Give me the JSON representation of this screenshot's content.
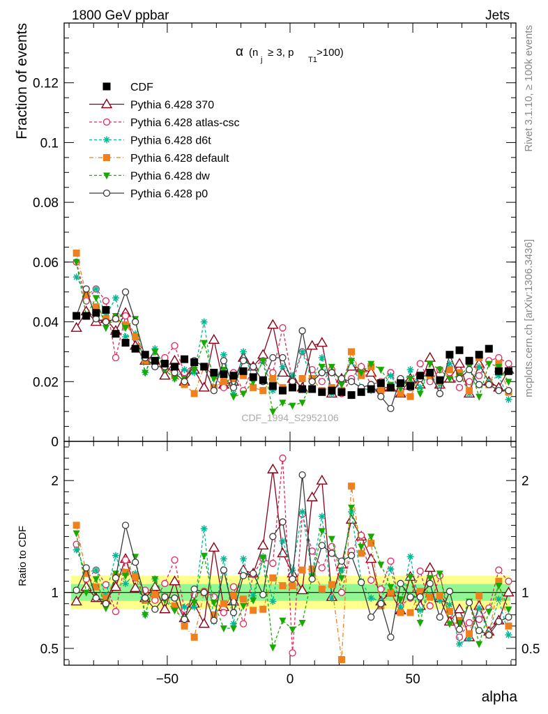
{
  "header": {
    "left": "1800 GeV ppbar",
    "right": "Jets",
    "side_top": "Rivet 3.1.10, ≥ 100k events",
    "side_bottom": "mcplots.cern.ch [arXiv:1306.3436]"
  },
  "chart_data": [
    {
      "type": "line",
      "title": "α (n_j ≥ 3, p_T1 >100)",
      "title_parts": {
        "alpha": "α",
        "open": "(n",
        "j": "j",
        "mid": "≥ 3, p",
        "T1": "T1",
        "close": ">100)"
      },
      "ylabel": "Fraction of events",
      "xlim": [
        -92,
        92
      ],
      "ylim": [
        0,
        0.14
      ],
      "yticks": [
        0,
        0.02,
        0.04,
        0.06,
        0.08,
        0.1,
        0.12
      ],
      "ytick_labels": [
        "0",
        "0.02",
        "0.04",
        "0.06",
        "0.08",
        "0.1",
        "0.12"
      ],
      "watermark": "CDF_1994_S2952106",
      "legend_position": "top-left",
      "x": [
        -87,
        -83,
        -79,
        -75,
        -71,
        -67,
        -63,
        -59,
        -55,
        -51,
        -47,
        -43,
        -39,
        -35,
        -31,
        -27,
        -23,
        -19,
        -15,
        -11,
        -7,
        -3,
        1,
        5,
        9,
        13,
        17,
        21,
        25,
        29,
        33,
        37,
        41,
        45,
        49,
        53,
        57,
        61,
        65,
        69,
        73,
        77,
        81,
        85,
        89
      ],
      "series": [
        {
          "name": "CDF",
          "color": "#000000",
          "marker": "square-filled",
          "line": "none",
          "values": [
            0.042,
            0.042,
            0.043,
            0.044,
            0.036,
            0.033,
            0.031,
            0.029,
            0.027,
            0.026,
            0.025,
            0.0275,
            0.0265,
            0.025,
            0.023,
            0.0225,
            0.022,
            0.0235,
            0.0215,
            0.0205,
            0.0185,
            0.017,
            0.018,
            0.0175,
            0.0175,
            0.0165,
            0.017,
            0.0165,
            0.0155,
            0.0165,
            0.0175,
            0.0195,
            0.018,
            0.0195,
            0.0185,
            0.022,
            0.023,
            0.0205,
            0.029,
            0.0305,
            0.027,
            0.029,
            0.031,
            0.0235,
            0.0235
          ]
        },
        {
          "name": "Pythia 6.428 370",
          "color": "#8b0016",
          "marker": "triangle-open",
          "line": "solid",
          "values": [
            0.038,
            0.0435,
            0.04,
            0.041,
            0.037,
            0.043,
            0.032,
            0.027,
            0.029,
            0.022,
            0.027,
            0.02,
            0.024,
            0.018,
            0.034,
            0.019,
            0.02,
            0.028,
            0.025,
            0.029,
            0.039,
            0.023,
            0.021,
            0.018,
            0.032,
            0.033,
            0.016,
            0.021,
            0.025,
            0.0245,
            0.023,
            0.018,
            0.018,
            0.016,
            0.021,
            0.019,
            0.028,
            0.019,
            0.021,
            0.026,
            0.016,
            0.026,
            0.02,
            0.018,
            0.024
          ]
        },
        {
          "name": "Pythia 6.428 atlas-csc",
          "color": "#e8235c",
          "marker": "circle-open",
          "line": "dashed",
          "values": [
            0.06,
            0.047,
            0.051,
            0.047,
            0.028,
            0.042,
            0.035,
            0.029,
            0.025,
            0.028,
            0.032,
            0.023,
            0.026,
            0.025,
            0.022,
            0.018,
            0.023,
            0.017,
            0.025,
            0.027,
            0.023,
            0.038,
            0.02,
            0.03,
            0.024,
            0.02,
            0.024,
            0.016,
            0.021,
            0.025,
            0.019,
            0.02,
            0.023,
            0.017,
            0.018,
            0.026,
            0.02,
            0.024,
            0.023,
            0.018,
            0.02,
            0.022,
            0.027,
            0.028,
            0.026
          ]
        },
        {
          "name": "Pythia 6.428 d6t",
          "color": "#00b894",
          "marker": "star",
          "line": "dashed",
          "values": [
            0.055,
            0.049,
            0.051,
            0.042,
            0.048,
            0.035,
            0.036,
            0.023,
            0.031,
            0.024,
            0.021,
            0.024,
            0.023,
            0.04,
            0.017,
            0.029,
            0.016,
            0.03,
            0.021,
            0.027,
            0.017,
            0.025,
            0.022,
            0.03,
            0.02,
            0.028,
            0.016,
            0.02,
            0.027,
            0.018,
            0.017,
            0.018,
            0.022,
            0.017,
            0.024,
            0.018,
            0.022,
            0.019,
            0.026,
            0.023,
            0.016,
            0.025,
            0.02,
            0.022,
            0.014
          ]
        },
        {
          "name": "Pythia 6.428 default",
          "color": "#f07f1e",
          "marker": "square-filled",
          "line": "dashdot",
          "values": [
            0.063,
            0.049,
            0.045,
            0.041,
            0.041,
            0.039,
            0.035,
            0.027,
            0.026,
            0.025,
            0.022,
            0.019,
            0.016,
            0.025,
            0.018,
            0.02,
            0.021,
            0.022,
            0.018,
            0.017,
            0.021,
            0.018,
            0.019,
            0.021,
            0.021,
            0.017,
            0.018,
            0.017,
            0.03,
            0.022,
            0.025,
            0.017,
            0.018,
            0.016,
            0.015,
            0.022,
            0.022,
            0.02,
            0.024,
            0.023,
            0.017,
            0.028,
            0.019,
            0.026,
            0.0165
          ]
        },
        {
          "name": "Pythia 6.428 dw",
          "color": "#19a900",
          "marker": "triangle-down-filled",
          "line": "dashed",
          "values": [
            0.06,
            0.042,
            0.048,
            0.038,
            0.042,
            0.038,
            0.041,
            0.023,
            0.03,
            0.024,
            0.021,
            0.021,
            0.024,
            0.033,
            0.021,
            0.024,
            0.015,
            0.016,
            0.02,
            0.027,
            0.01,
            0.013,
            0.012,
            0.013,
            0.02,
            0.025,
            0.025,
            0.019,
            0.027,
            0.023,
            0.026,
            0.024,
            0.019,
            0.018,
            0.021,
            0.016,
            0.026,
            0.024,
            0.021,
            0.022,
            0.025,
            0.015,
            0.026,
            0.025,
            0.02
          ]
        },
        {
          "name": "Pythia 6.428 p0",
          "color": "#3a3a3a",
          "marker": "circle-open",
          "line": "solid",
          "values": [
            0.042,
            0.051,
            0.041,
            0.04,
            0.041,
            0.05,
            0.04,
            0.028,
            0.025,
            0.025,
            0.023,
            0.02,
            0.027,
            0.025,
            0.017,
            0.027,
            0.018,
            0.027,
            0.025,
            0.02,
            0.028,
            0.028,
            0.02,
            0.037,
            0.02,
            0.023,
            0.023,
            0.021,
            0.02,
            0.018,
            0.019,
            0.015,
            0.011,
            0.021,
            0.018,
            0.021,
            0.023,
            0.016,
            0.029,
            0.021,
            0.024,
            0.019,
            0.019,
            0.017,
            0.017
          ]
        }
      ]
    },
    {
      "type": "line",
      "xlabel": "alpha",
      "ylabel": "Ratio to CDF",
      "xlim": [
        -92,
        92
      ],
      "ylim": [
        0.35,
        2.35
      ],
      "xticks": [
        -50,
        0,
        50
      ],
      "xtick_labels": [
        "−50",
        "0",
        "50"
      ],
      "yticks": [
        0.5,
        1,
        2
      ],
      "ytick_labels": [
        "0.5",
        "1",
        "2"
      ],
      "bands": {
        "outer": 0.15,
        "inner": 0.075,
        "outer_color": "#ffff8c",
        "inner_color": "#92f792"
      },
      "x": [
        -87,
        -83,
        -79,
        -75,
        -71,
        -67,
        -63,
        -59,
        -55,
        -51,
        -47,
        -43,
        -39,
        -35,
        -31,
        -27,
        -23,
        -19,
        -15,
        -11,
        -7,
        -3,
        1,
        5,
        9,
        13,
        17,
        21,
        25,
        29,
        33,
        37,
        41,
        45,
        49,
        53,
        57,
        61,
        65,
        69,
        73,
        77,
        81,
        85,
        89
      ],
      "series": [
        {
          "name": "Pythia 6.428 370",
          "values": [
            0.92,
            1.05,
            0.95,
            0.93,
            1.05,
            1.3,
            1.04,
            0.95,
            1.05,
            0.85,
            1.1,
            0.77,
            0.9,
            0.72,
            1.4,
            0.87,
            0.92,
            1.2,
            1.17,
            1.42,
            2.1,
            1.35,
            1.17,
            1.02,
            1.85,
            2.0,
            0.96,
            1.25,
            1.65,
            1.5,
            1.3,
            0.92,
            1.0,
            0.84,
            1.14,
            0.88,
            1.22,
            0.95,
            0.74,
            0.85,
            0.6,
            0.88,
            0.65,
            0.75,
            1.0
          ]
        },
        {
          "name": "Pythia 6.428 atlas-csc",
          "values": [
            1.43,
            1.12,
            1.2,
            1.07,
            0.83,
            1.29,
            1.13,
            1.02,
            0.93,
            1.08,
            1.29,
            0.85,
            0.98,
            1.01,
            0.96,
            0.82,
            1.05,
            0.72,
            1.16,
            1.3,
            1.26,
            2.2,
            0.46,
            1.7,
            1.37,
            1.22,
            1.41,
            1.0,
            1.37,
            1.51,
            1.11,
            1.03,
            1.28,
            0.88,
            0.95,
            1.19,
            0.88,
            1.15,
            0.81,
            0.6,
            0.73,
            0.76,
            0.86,
            1.2,
            1.1
          ]
        },
        {
          "name": "Pythia 6.428 d6t",
          "values": [
            1.38,
            1.18,
            1.2,
            0.97,
            1.33,
            1.08,
            1.17,
            0.8,
            1.12,
            0.95,
            0.86,
            0.87,
            0.87,
            1.57,
            0.74,
            1.3,
            0.72,
            1.3,
            0.97,
            1.32,
            0.92,
            1.46,
            1.2,
            1.72,
            1.17,
            1.68,
            0.95,
            1.2,
            1.72,
            1.1,
            0.95,
            0.92,
            1.21,
            0.87,
            1.32,
            0.84,
            0.97,
            0.93,
            0.89,
            0.54,
            0.59,
            0.86,
            0.63,
            0.94,
            0.62
          ]
        },
        {
          "name": "Pythia 6.428 default",
          "values": [
            1.6,
            1.17,
            1.05,
            0.95,
            1.14,
            1.18,
            1.14,
            0.93,
            0.98,
            0.96,
            0.88,
            0.7,
            0.6,
            1.0,
            0.8,
            0.9,
            0.97,
            0.94,
            0.84,
            0.85,
            1.13,
            1.06,
            1.06,
            1.2,
            1.21,
            1.03,
            1.07,
            0.4,
            1.95,
            1.35,
            1.44,
            0.88,
            1.0,
            0.82,
            0.82,
            1.01,
            0.96,
            0.97,
            0.83,
            0.75,
            0.63,
            0.97,
            0.62,
            1.1,
            0.7
          ]
        },
        {
          "name": "Pythia 6.428 dw",
          "values": [
            1.53,
            1.0,
            1.12,
            0.86,
            1.17,
            1.15,
            1.32,
            0.8,
            1.12,
            0.93,
            0.84,
            0.76,
            0.91,
            1.33,
            0.91,
            0.68,
            0.68,
            0.88,
            0.93,
            1.31,
            0.51,
            0.75,
            0.67,
            0.73,
            1.14,
            1.55,
            1.48,
            1.13,
            1.76,
            1.41,
            1.5,
            1.25,
            1.05,
            0.94,
            1.14,
            0.73,
            1.13,
            1.17,
            0.72,
            0.73,
            0.92,
            0.54,
            0.83,
            1.06,
            0.85
          ]
        },
        {
          "name": "Pythia 6.428 p0",
          "values": [
            1.02,
            1.22,
            0.95,
            0.9,
            1.13,
            1.6,
            1.27,
            0.95,
            0.85,
            0.96,
            0.95,
            0.76,
            1.03,
            1.0,
            0.75,
            1.2,
            0.82,
            1.15,
            1.17,
            0.98,
            1.5,
            1.63,
            1.12,
            2.05,
            1.12,
            1.42,
            1.35,
            1.28,
            1.33,
            1.09,
            0.78,
            0.9,
            0.6,
            1.08,
            0.96,
            0.96,
            1.08,
            0.78,
            1.01,
            0.67,
            0.91,
            0.66,
            0.62,
            0.74,
            0.78
          ]
        }
      ]
    }
  ]
}
